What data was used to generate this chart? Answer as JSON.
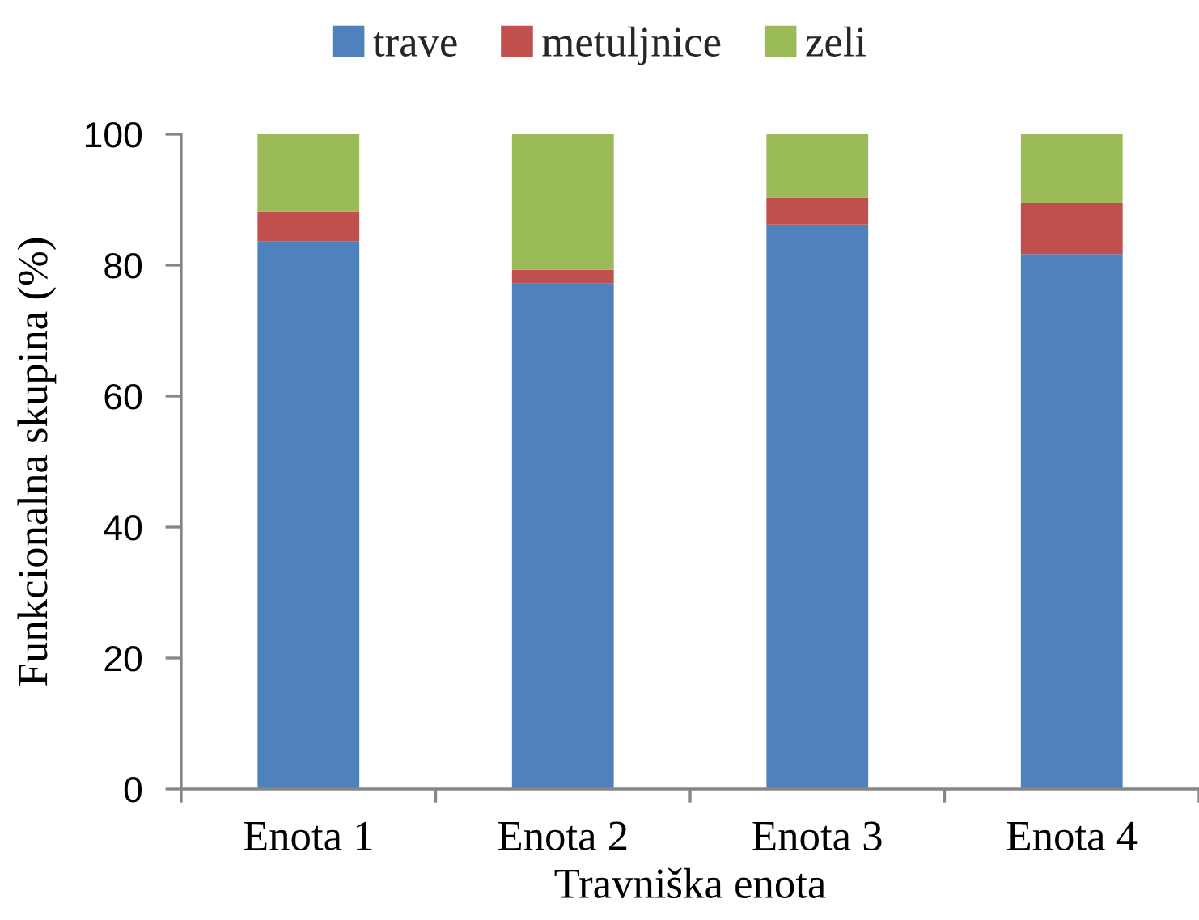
{
  "chart_data": {
    "type": "bar",
    "stacked": true,
    "xlabel": "Travniška enota",
    "ylabel": "Funkcionalna skupina (%)",
    "categories": [
      "Enota 1",
      "Enota 2",
      "Enota 3",
      "Enota 4"
    ],
    "series": [
      {
        "name": "trave",
        "color": "#4f81bd",
        "values": [
          83.6,
          77.2,
          86.2,
          81.7
        ]
      },
      {
        "name": "metuljnice",
        "color": "#c0504d",
        "values": [
          4.6,
          2.1,
          4.1,
          7.8
        ]
      },
      {
        "name": "zeli",
        "color": "#9bbb59",
        "values": [
          11.8,
          20.7,
          9.7,
          10.5
        ]
      }
    ],
    "ylim": [
      0,
      100
    ],
    "yticks": [
      0,
      20,
      40,
      60,
      80,
      100
    ],
    "legend": "top",
    "grid": false
  }
}
